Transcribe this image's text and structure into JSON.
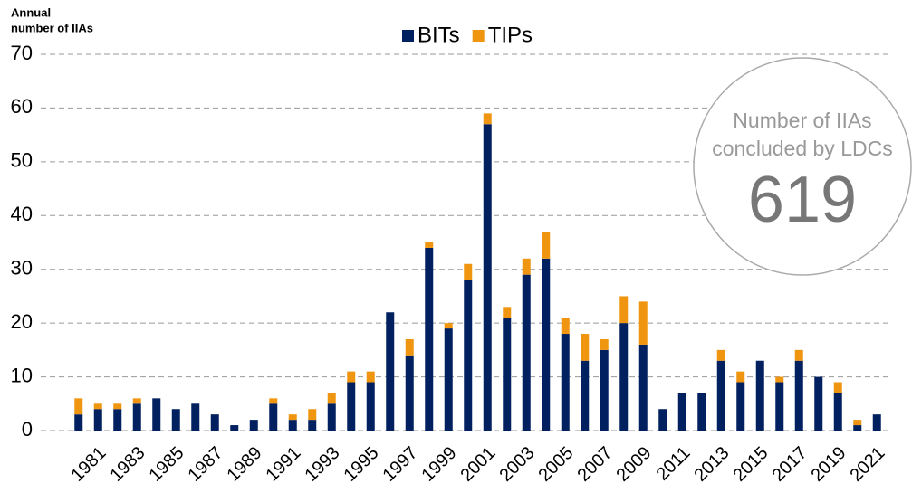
{
  "chart_data": {
    "type": "stacked_bar",
    "ylabel": [
      "Annual",
      "number of IIAs"
    ],
    "categories": [
      null,
      "1981",
      null,
      "1983",
      null,
      "1985",
      null,
      "1987",
      null,
      "1989",
      null,
      "1991",
      null,
      "1993",
      null,
      "1995",
      null,
      "1997",
      null,
      "1999",
      null,
      "2001",
      null,
      "2003",
      null,
      "2005",
      null,
      "2007",
      null,
      "2009",
      null,
      "2011",
      null,
      "2013",
      null,
      "2015",
      null,
      "2017",
      null,
      "2019",
      null,
      "2021"
    ],
    "series": [
      {
        "name": "BITs",
        "color": "#002060",
        "values": [
          3,
          4,
          4,
          5,
          6,
          4,
          5,
          3,
          1,
          2,
          5,
          2,
          2,
          5,
          9,
          9,
          22,
          14,
          34,
          19,
          28,
          57,
          21,
          29,
          32,
          18,
          13,
          15,
          20,
          16,
          4,
          7,
          7,
          13,
          9,
          13,
          9,
          13,
          10,
          7,
          1,
          3
        ]
      },
      {
        "name": "TIPs",
        "color": "#f0950f",
        "values": [
          3,
          1,
          1,
          1,
          0,
          0,
          0,
          0,
          0,
          0,
          1,
          1,
          2,
          2,
          2,
          2,
          0,
          3,
          1,
          1,
          3,
          2,
          2,
          3,
          5,
          3,
          5,
          2,
          5,
          8,
          0,
          0,
          0,
          2,
          2,
          0,
          1,
          2,
          0,
          2,
          1,
          0
        ]
      }
    ],
    "ylim": [
      0,
      70
    ],
    "yticks": [
      0,
      10,
      20,
      30,
      40,
      50,
      60,
      70
    ],
    "grid": true,
    "legend": "top",
    "annotation": {
      "lines": [
        "Number of IIAs",
        "concluded by LDCs"
      ],
      "value": 619
    }
  }
}
